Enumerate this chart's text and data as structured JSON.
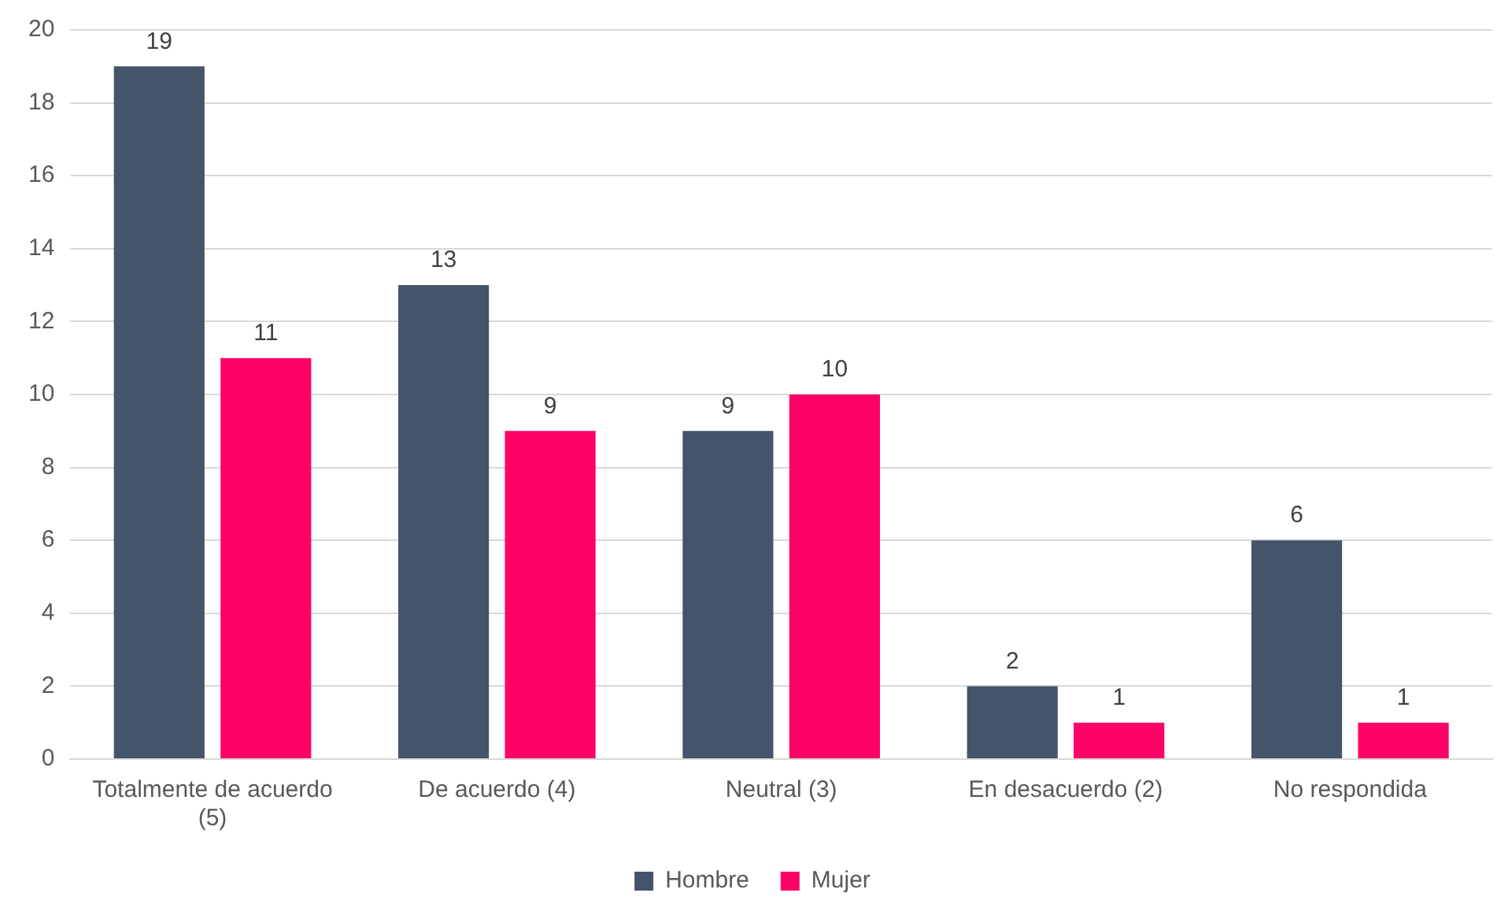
{
  "chart_data": {
    "type": "bar",
    "categories": [
      "Totalmente de acuerdo (5)",
      "De acuerdo (4)",
      "Neutral (3)",
      "En desacuerdo (2)",
      "No respondida"
    ],
    "series": [
      {
        "name": "Hombre",
        "color": "#44546a",
        "values": [
          19,
          13,
          9,
          2,
          6
        ]
      },
      {
        "name": "Mujer",
        "color": "#ff0066",
        "values": [
          11,
          9,
          10,
          1,
          1
        ]
      }
    ],
    "ylim": [
      0,
      20
    ],
    "yticks": [
      0,
      2,
      4,
      6,
      8,
      10,
      12,
      14,
      16,
      18,
      20
    ],
    "grid": "y",
    "legend": "bottom",
    "data_labels": true
  }
}
